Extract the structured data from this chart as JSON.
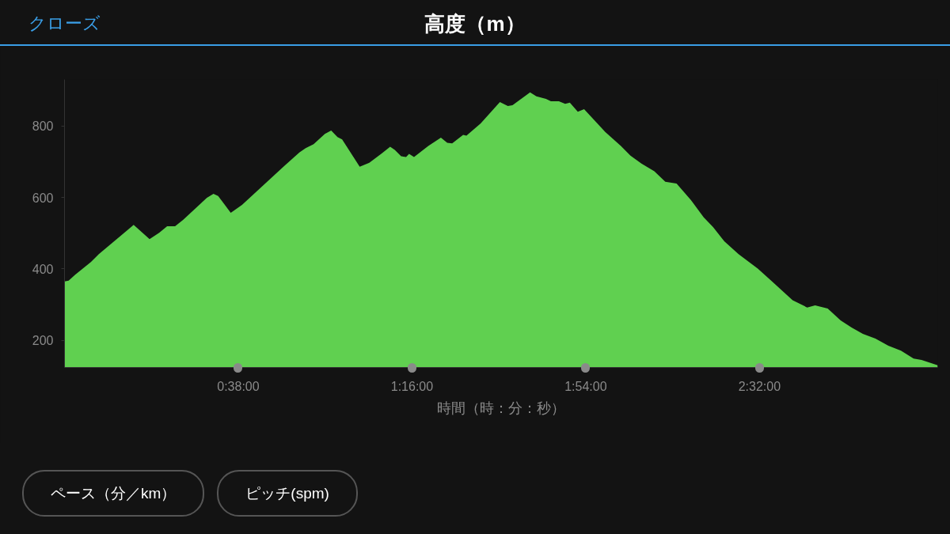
{
  "chart_data": {
    "type": "area",
    "title": "高度（m）",
    "xlabel": "時間（時：分：秒）",
    "annotations": [
      "クローズ",
      "ペース（分／km）",
      "ピッチ(spm)"
    ],
    "x": [
      0,
      0.015,
      0.038,
      0.096,
      0.125,
      0.229,
      0.252,
      0.31,
      0.345,
      0.374,
      0.403,
      0.432,
      0.519,
      0.543,
      0.56,
      0.606,
      0.647,
      0.798,
      0.856,
      0.879,
      0.908,
      0.949,
      0.972,
      0.995,
      1.012,
      1.076,
      1.111,
      1.158,
      1.187,
      1.204,
      1.227,
      1.245,
      1.256,
      1.274,
      1.326,
      1.372,
      1.395,
      1.413,
      1.453,
      1.465,
      1.517,
      1.587,
      1.616,
      1.633,
      1.697,
      1.72,
      1.755,
      1.773,
      1.802,
      1.825,
      1.842,
      1.871,
      1.894,
      1.97,
      2.028,
      2.063,
      2.103,
      2.15,
      2.19,
      2.231,
      2.283,
      2.33,
      2.364,
      2.405,
      2.457,
      2.527,
      2.579,
      2.654,
      2.707,
      2.736,
      2.782,
      2.829,
      2.869,
      2.91,
      2.956,
      3.003,
      3.049,
      3.095,
      3.124,
      3.183
    ],
    "series": [
      {
        "color": "#60d050",
        "values": [
          365,
          367,
          383,
          419,
          441,
          508,
          523,
          483,
          501,
          519,
          519,
          537,
          599,
          610,
          604,
          557,
          579,
          686,
          726,
          738,
          749,
          778,
          787,
          769,
          762,
          686,
          697,
          724,
          742,
          733,
          715,
          713,
          722,
          713,
          744,
          767,
          753,
          751,
          775,
          773,
          807,
          867,
          856,
          858,
          894,
          883,
          876,
          869,
          869,
          862,
          865,
          840,
          847,
          784,
          744,
          717,
          695,
          673,
          644,
          639,
          593,
          544,
          517,
          477,
          441,
          401,
          365,
          312,
          292,
          298,
          289,
          256,
          236,
          218,
          205,
          185,
          171,
          149,
          145,
          130
        ]
      }
    ],
    "xticks": [
      {
        "value": 0.6333,
        "label": "0:38:00"
      },
      {
        "value": 1.2667,
        "label": "1:16:00"
      },
      {
        "value": 1.9,
        "label": "1:54:00"
      },
      {
        "value": 2.5333,
        "label": "2:32:00"
      }
    ],
    "xlim": [
      0,
      3.183
    ],
    "ylim": [
      124,
      930
    ],
    "yticks": [
      200,
      400,
      600,
      800
    ]
  }
}
